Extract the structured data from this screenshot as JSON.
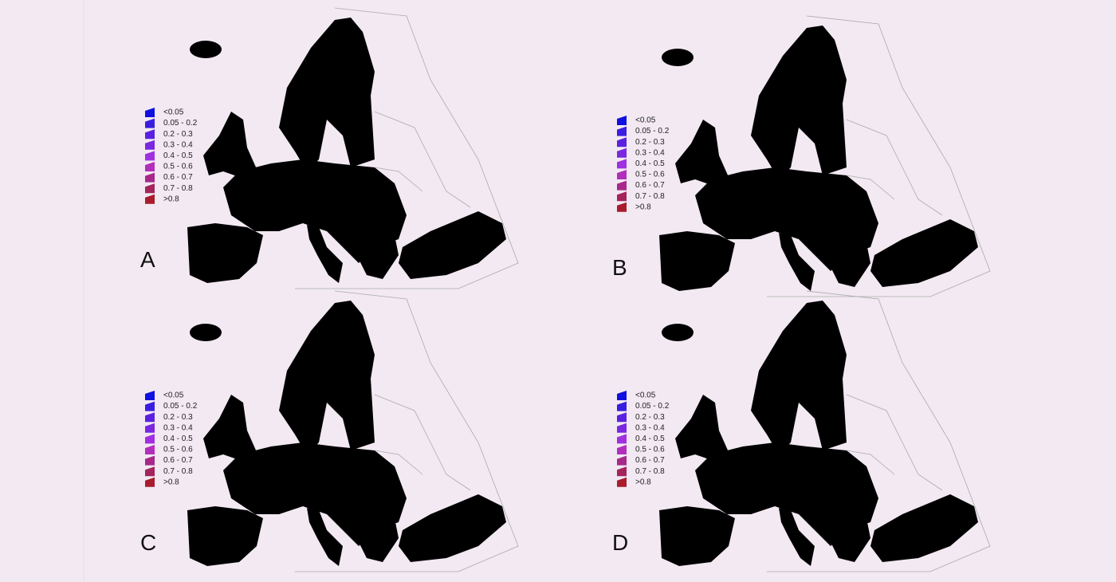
{
  "panels": [
    {
      "label": "A"
    },
    {
      "label": "B"
    },
    {
      "label": "C"
    },
    {
      "label": "D"
    }
  ],
  "legend": [
    {
      "label": "<0.05",
      "color": "#1010e0"
    },
    {
      "label": "0.05 - 0.2",
      "color": "#3a1ee0"
    },
    {
      "label": "0.2 - 0.3",
      "color": "#5a22e0"
    },
    {
      "label": "0.3 - 0.4",
      "color": "#7a28e0"
    },
    {
      "label": "0.4 - 0.5",
      "color": "#a030e0"
    },
    {
      "label": "0.5 - 0.6",
      "color": "#b22ebc"
    },
    {
      "label": "0.6 - 0.7",
      "color": "#a8288a"
    },
    {
      "label": "0.7 - 0.8",
      "color": "#a4245c"
    },
    {
      "label": ">0.8",
      "color": "#a81c2c"
    }
  ]
}
